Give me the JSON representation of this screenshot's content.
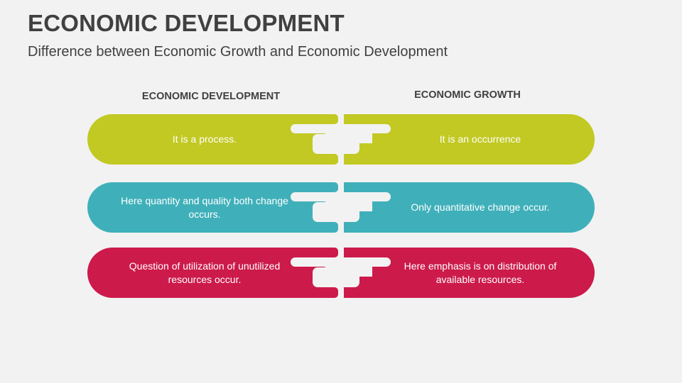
{
  "title": "ECONOMIC DEVELOPMENT",
  "subtitle": "Difference between Economic Growth and Economic Development",
  "columns": {
    "left": "ECONOMIC DEVELOPMENT",
    "right": "ECONOMIC GROWTH"
  },
  "colors": {
    "row1": "#c2c923",
    "row2": "#3fb0ba",
    "row3": "#cc1a4b",
    "background": "#f2f2f2"
  },
  "rows": [
    {
      "left": "It is a process.",
      "right": "It is an occurrence"
    },
    {
      "left": "Here quantity and quality both change occurs.",
      "right": "Only quantitative change occur."
    },
    {
      "left": "Question of utilization of unutilized resources  occur.",
      "right": "Here emphasis is on distribution of available resources."
    }
  ]
}
